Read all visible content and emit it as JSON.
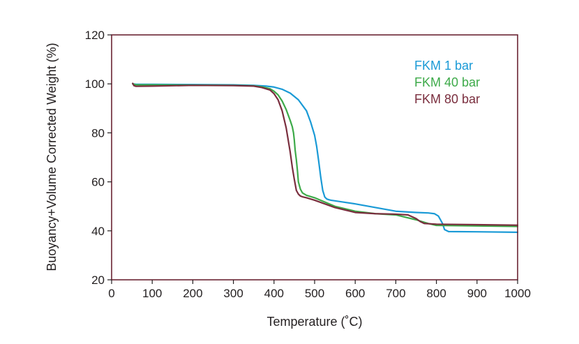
{
  "chart_data": {
    "type": "line",
    "title": "",
    "xlabel": "Temperature (˚C)",
    "ylabel": "Buoyancy+Volume Corrected Weight (%)",
    "xlim": [
      0,
      1000
    ],
    "ylim": [
      20,
      120
    ],
    "xticks": [
      "0",
      "100",
      "200",
      "300",
      "400",
      "500",
      "600",
      "700",
      "800",
      "900",
      "1000"
    ],
    "yticks": [
      "20",
      "40",
      "60",
      "80",
      "100",
      "120"
    ],
    "grid": false,
    "legend_position": "top-right",
    "frame_color": "#6b2433",
    "series": [
      {
        "name": "FKM 1 bar",
        "color": "#1a9ad6",
        "x": [
          52,
          60,
          100,
          200,
          300,
          350,
          380,
          400,
          420,
          440,
          460,
          480,
          490,
          500,
          505,
          510,
          515,
          520,
          525,
          530,
          535,
          540,
          560,
          600,
          650,
          700,
          750,
          780,
          795,
          805,
          815,
          820,
          830,
          900,
          1000
        ],
        "y": [
          100,
          99.8,
          99.8,
          99.7,
          99.6,
          99.4,
          99.1,
          98.7,
          97.8,
          96.2,
          93.5,
          89,
          84.5,
          79,
          74.5,
          68.5,
          62,
          56.5,
          53.8,
          53,
          52.7,
          52.5,
          52,
          51,
          49.5,
          48,
          47.5,
          47.3,
          47,
          46,
          43,
          40.5,
          39.7,
          39.6,
          39.4
        ]
      },
      {
        "name": "FKM 40 bar",
        "color": "#3daa49",
        "x": [
          52,
          60,
          100,
          200,
          300,
          350,
          370,
          390,
          400,
          410,
          420,
          430,
          440,
          445,
          448,
          450,
          452,
          455,
          458,
          460,
          465,
          470,
          480,
          500,
          550,
          600,
          650,
          700,
          750,
          780,
          800,
          850,
          900,
          1000
        ],
        "y": [
          100,
          99.6,
          99.6,
          99.5,
          99.4,
          99.2,
          98.8,
          98,
          97,
          95.5,
          93,
          89.5,
          85,
          82.5,
          80,
          77,
          73,
          69,
          64,
          60,
          57,
          55.5,
          54.5,
          53.5,
          50,
          48,
          47,
          46.5,
          44.5,
          43,
          42.2,
          42.1,
          42,
          41.8
        ]
      },
      {
        "name": "FKM 80 bar",
        "color": "#7a2e3e",
        "x": [
          52,
          55,
          60,
          100,
          200,
          300,
          350,
          370,
          390,
          400,
          410,
          420,
          430,
          440,
          445,
          450,
          455,
          460,
          465,
          470,
          480,
          500,
          550,
          600,
          650,
          700,
          730,
          750,
          760,
          770,
          800,
          900,
          1000
        ],
        "y": [
          100.2,
          99.3,
          99,
          99.1,
          99.4,
          99.3,
          99.1,
          98.5,
          97.5,
          96,
          93.5,
          89,
          82,
          72,
          66,
          61,
          56.5,
          55,
          54.2,
          53.9,
          53.5,
          52.5,
          49.5,
          47.5,
          47,
          46.8,
          46.5,
          45,
          43.8,
          43,
          42.7,
          42.5,
          42.3
        ]
      }
    ]
  }
}
